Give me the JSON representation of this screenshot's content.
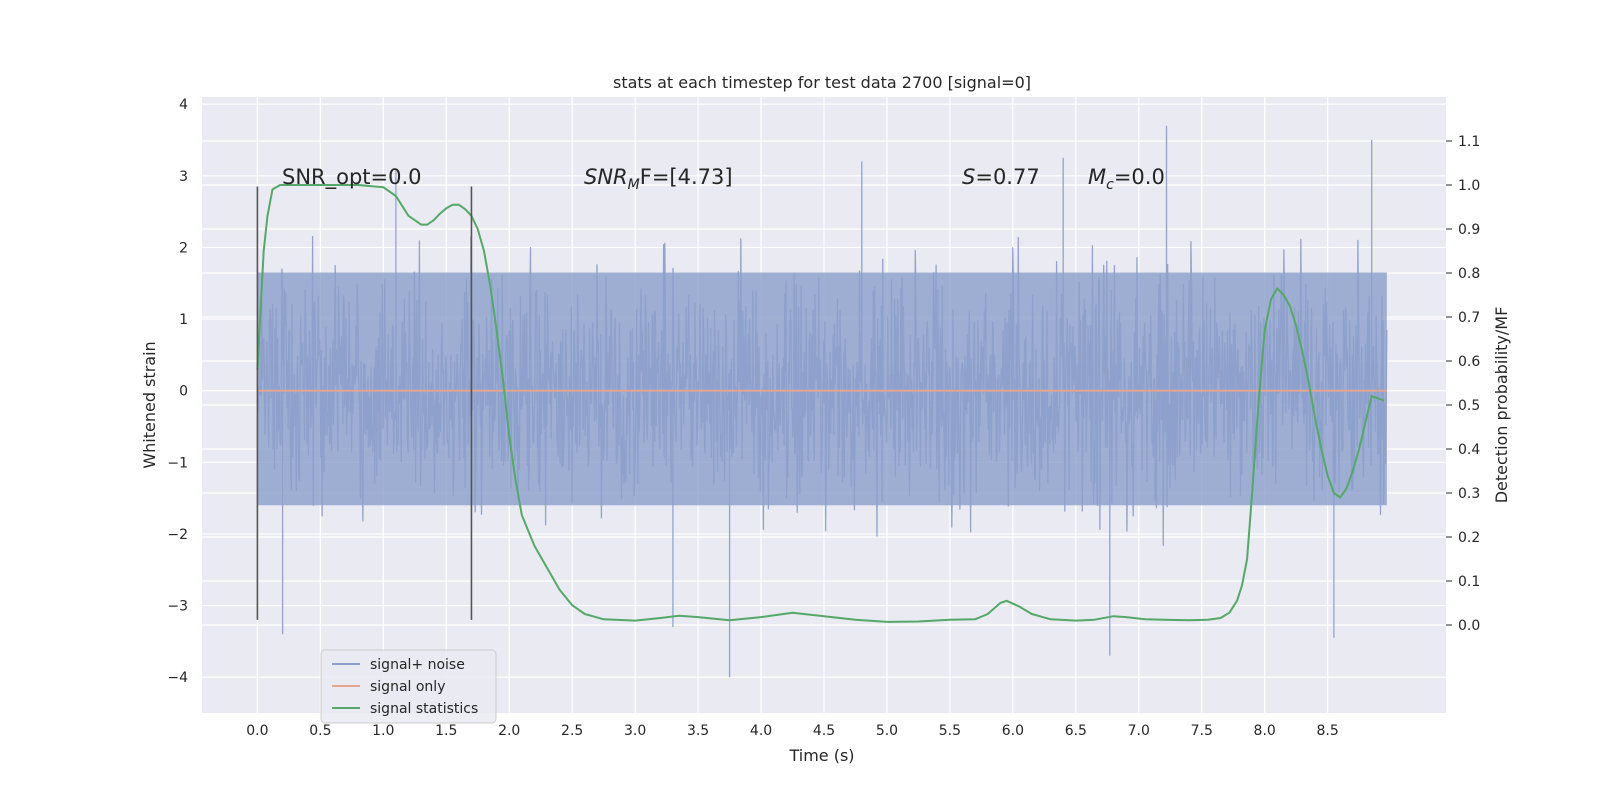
{
  "chart_data": {
    "type": "line",
    "title": "stats at each timestep for test data 2700 [signal=0]",
    "xlabel": "Time (s)",
    "ylabel_left": "Whitened strain",
    "ylabel_right": "Detection probability/MF",
    "xlim": [
      -0.44,
      9.44
    ],
    "ylim_left": [
      -4.5,
      4.1
    ],
    "ylim_right": [
      -0.2,
      1.2
    ],
    "x_ticks": [
      "0.0",
      "0.5",
      "1.0",
      "1.5",
      "2.0",
      "2.5",
      "3.0",
      "3.5",
      "4.0",
      "4.5",
      "5.0",
      "5.5",
      "6.0",
      "6.5",
      "7.0",
      "7.5",
      "8.0",
      "8.5"
    ],
    "y_left_ticks": [
      "4",
      "3",
      "2",
      "1",
      "0",
      "−1",
      "−2",
      "−3",
      "−4"
    ],
    "y_right_ticks": [
      "1.1",
      "1.0",
      "0.9",
      "0.8",
      "0.7",
      "0.6",
      "0.5",
      "0.4",
      "0.3",
      "0.2",
      "0.1",
      "0.0"
    ],
    "grid": true,
    "legend_position": "lower-left",
    "annotations": {
      "snr_opt": "SNR_opt=0.0",
      "snr_mf_name": "SNR",
      "snr_mf_sub": "M",
      "snr_mf_rest": "F=[4.73]",
      "s_name": "S",
      "s_value": "=0.77",
      "mc_name": "M",
      "mc_sub": "c",
      "mc_value": "=0.0"
    },
    "vertical_markers": [
      {
        "x": 0.0,
        "y_range": [
          -3.2,
          2.85
        ]
      },
      {
        "x": 1.7,
        "y_range": [
          -3.2,
          2.85
        ]
      }
    ],
    "series": [
      {
        "name": "signal+ noise",
        "axis": "left",
        "color": "#8da0cb",
        "x_range": [
          0.0,
          8.97
        ],
        "typical_band": [
          -1.6,
          1.65
        ],
        "envelope": [
          -2.6,
          2.4
        ],
        "extremes": [
          {
            "x": 3.75,
            "y": -4.0
          },
          {
            "x": 6.77,
            "y": -3.7
          },
          {
            "x": 8.55,
            "y": -3.45
          },
          {
            "x": 0.2,
            "y": -3.4
          },
          {
            "x": 3.3,
            "y": -3.3
          },
          {
            "x": 7.22,
            "y": 3.7
          },
          {
            "x": 8.85,
            "y": 3.5
          },
          {
            "x": 6.4,
            "y": 3.25
          },
          {
            "x": 4.8,
            "y": 3.2
          },
          {
            "x": 1.1,
            "y": 3.1
          }
        ]
      },
      {
        "name": "signal only",
        "axis": "left",
        "color": "#e5a58f",
        "x": [
          0.0,
          8.97
        ],
        "y": [
          0.0,
          0.0
        ]
      },
      {
        "name": "signal statistics",
        "axis": "right",
        "color": "#55a868",
        "x": [
          0.0,
          0.05,
          0.08,
          0.12,
          0.18,
          0.3,
          0.5,
          0.8,
          1.0,
          1.1,
          1.2,
          1.3,
          1.35,
          1.4,
          1.45,
          1.5,
          1.55,
          1.6,
          1.65,
          1.7,
          1.75,
          1.8,
          1.85,
          1.9,
          1.95,
          2.0,
          2.05,
          2.1,
          2.2,
          2.3,
          2.4,
          2.5,
          2.6,
          2.75,
          3.0,
          3.2,
          3.35,
          3.5,
          3.75,
          4.0,
          4.25,
          4.5,
          4.75,
          5.0,
          5.25,
          5.5,
          5.7,
          5.8,
          5.9,
          5.95,
          6.05,
          6.15,
          6.3,
          6.5,
          6.65,
          6.8,
          6.9,
          7.05,
          7.2,
          7.4,
          7.55,
          7.65,
          7.72,
          7.78,
          7.82,
          7.86,
          7.9,
          7.95,
          8.0,
          8.05,
          8.1,
          8.15,
          8.2,
          8.25,
          8.3,
          8.35,
          8.4,
          8.45,
          8.5,
          8.55,
          8.6,
          8.65,
          8.7,
          8.75,
          8.8,
          8.85,
          8.9,
          8.95
        ],
        "y": [
          0.58,
          0.85,
          0.93,
          0.99,
          1.0,
          1.0,
          1.0,
          1.0,
          0.995,
          0.975,
          0.93,
          0.91,
          0.91,
          0.92,
          0.935,
          0.947,
          0.955,
          0.955,
          0.945,
          0.93,
          0.9,
          0.85,
          0.77,
          0.67,
          0.56,
          0.43,
          0.33,
          0.25,
          0.18,
          0.13,
          0.08,
          0.045,
          0.025,
          0.013,
          0.01,
          0.016,
          0.021,
          0.018,
          0.011,
          0.018,
          0.028,
          0.02,
          0.012,
          0.007,
          0.008,
          0.012,
          0.013,
          0.025,
          0.05,
          0.055,
          0.042,
          0.025,
          0.013,
          0.01,
          0.012,
          0.02,
          0.018,
          0.013,
          0.012,
          0.011,
          0.012,
          0.016,
          0.028,
          0.055,
          0.09,
          0.15,
          0.3,
          0.5,
          0.67,
          0.74,
          0.765,
          0.75,
          0.725,
          0.68,
          0.62,
          0.55,
          0.47,
          0.4,
          0.34,
          0.3,
          0.29,
          0.31,
          0.35,
          0.4,
          0.46,
          0.52,
          0.515,
          0.51
        ]
      }
    ]
  }
}
